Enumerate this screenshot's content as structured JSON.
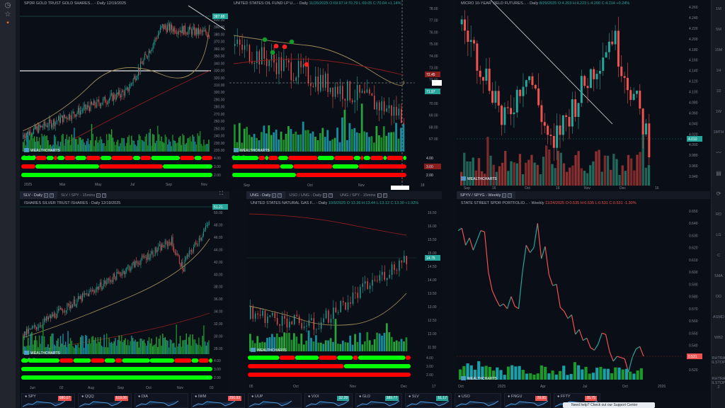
{
  "app": {
    "brand": "WEALTHCHARTS"
  },
  "left_sidebar": {
    "icons": [
      "clock-icon",
      "star-icon",
      "apps-icon"
    ]
  },
  "right_toolbar": {
    "items": [
      "1M",
      "5M",
      "15M",
      "1H",
      "1D",
      "1W",
      "1MTH",
      "line-chart-icon",
      "notes-icon",
      "refresh-icon",
      "RD",
      "LG",
      "C",
      "SMA",
      "DD",
      "ASMD",
      "WB2",
      "RHTRA ILSTOP",
      "RHTRA ILSTOP 2"
    ]
  },
  "panels": [
    {
      "id": "gld",
      "title": "SPDR GOLD TRUST GOLD SHARES... - Daily 12/19/2025",
      "ohlc": "",
      "y_labels": [
        "400.00",
        "390.00",
        "380.00",
        "370.00",
        "360.00",
        "350.00",
        "340.00",
        "330.00",
        "320.00",
        "310.00",
        "300.00",
        "290.00",
        "280.00",
        "270.00",
        "260.00",
        "250.00",
        "240.00",
        "230.00",
        "220.00"
      ],
      "price_tag": "387.88",
      "osc_labels": [
        "4.00",
        "3.00",
        "2.00"
      ],
      "x_labels": [
        "2025",
        "Mar",
        "May",
        "Jul",
        "Sep",
        "Nov"
      ]
    },
    {
      "id": "uso",
      "title": "UNITED STATES OIL FUND LP U... - Daily",
      "ohlc": "11/26/2025 O:69.97 H:70.79 L:69.05 C:70.04 +1.14%",
      "y_labels": [
        "78.00",
        "77.00",
        "76.00",
        "75.00",
        "74.00",
        "73.00",
        "72.00",
        "71.00",
        "70.00",
        "69.00",
        "68.00",
        "67.00"
      ],
      "price_tags": [
        "72.45",
        "71.97"
      ],
      "osc_labels": [
        "4.00",
        "3.00",
        "2.00"
      ],
      "x_labels": [
        "Sep",
        "Oct",
        "Nov",
        "18"
      ]
    },
    {
      "id": "10y",
      "title": "MICRO 10-YEAR YIELD FUTURES... - Daily",
      "ohlc": "8/29/2025 O:4.203 H:4.223 L:4.200 C:4.214 +0.24%",
      "y_labels": [
        "4.260",
        "4.240",
        "4.220",
        "4.200",
        "4.180",
        "4.160",
        "4.140",
        "4.120",
        "4.100",
        "4.080",
        "4.060",
        "4.040",
        "4.020",
        "4.000",
        "3.980",
        "3.960",
        "3.940"
      ],
      "price_tag": "4.010",
      "x_labels": [
        "Sep",
        "16",
        "Oct",
        "16",
        "Nov",
        "Dec",
        "16"
      ]
    },
    {
      "id": "slv",
      "tabs": [
        {
          "label": "SLV - Daily",
          "active": true
        },
        {
          "label": "SLV / SPY - 15mins",
          "active": false
        }
      ],
      "title": "ISHARES SILVER TRUST ISHARES - Daily 12/19/2025",
      "ohlc": "",
      "y_labels": [
        "50.00",
        "48.00",
        "46.00",
        "44.00",
        "42.00",
        "40.00",
        "38.00",
        "36.00",
        "34.00",
        "32.00",
        "30.00",
        "28.00"
      ],
      "price_tag": "51.21",
      "osc_labels": [
        "4.00",
        "3.00",
        "2.00"
      ],
      "x_labels": [
        "Jun",
        "02",
        "Aug",
        "Sep",
        "Oct",
        "Nov",
        "03"
      ]
    },
    {
      "id": "ung",
      "tabs": [
        {
          "label": "UNG - Daily",
          "active": true
        },
        {
          "label": "USO / UNG - Daily",
          "active": false
        },
        {
          "label": "UNG / SPY - 15mins",
          "active": false
        }
      ],
      "title": "UNITED STATES NATURAL GAS F... - Daily",
      "ohlc": "10/6/2025 O:13.36 H:13.44 L:13.12 C:13.30 +1.92%",
      "y_labels": [
        "16.50",
        "16.00",
        "15.50",
        "15.00",
        "14.50",
        "14.00",
        "13.50",
        "13.00",
        "12.50",
        "12.00",
        "11.50"
      ],
      "price_tag": "14.75",
      "osc_labels": [
        "4.00",
        "3.00",
        "2.00"
      ],
      "x_labels": [
        "05",
        "Oct",
        "Nov",
        "Dec",
        "17"
      ]
    },
    {
      "id": "spyv",
      "tabs": [
        {
          "label": "SPYV / SPYG - Weekly",
          "active": true
        }
      ],
      "title": "STATE STREET SPDR PORTFOLIO... - Weekly",
      "ohlc": "11/24/2025 O:0.535 H:0.535 L:0.531 C:0.531 -1.30%",
      "y_labels": [
        "0.650",
        "0.640",
        "0.630",
        "0.620",
        "0.610",
        "0.600",
        "0.590",
        "0.580",
        "0.570",
        "0.560",
        "0.550",
        "0.540",
        "0.530",
        "0.520"
      ],
      "price_tag": "0.531",
      "x_labels": [
        "Oct",
        "2025",
        "Apr",
        "Jul",
        "Oct",
        "2026"
      ]
    }
  ],
  "tickers": [
    {
      "symbol": "SPY",
      "price": "680.07",
      "color": "#ef5350"
    },
    {
      "symbol": "QQQ",
      "price": "619.06",
      "color": "#ef5350"
    },
    {
      "symbol": "DIA",
      "price": "",
      "color": "#ef5350"
    },
    {
      "symbol": "IWM",
      "price": "250.93",
      "color": "#ef5350"
    },
    {
      "symbol": "UUP",
      "price": "",
      "color": "#26a69a"
    },
    {
      "symbol": "VXX",
      "price": "32.28",
      "color": "#26a69a"
    },
    {
      "symbol": "GLD",
      "price": "389.77",
      "color": "#26a69a"
    },
    {
      "symbol": "SLV",
      "price": "51.17",
      "color": "#26a69a"
    },
    {
      "symbol": "USO",
      "price": "",
      "color": "#26a69a"
    },
    {
      "symbol": "FNGU",
      "price": "29.95",
      "color": "#ef5350"
    },
    {
      "symbol": "FFTY",
      "price": "35.75",
      "color": "#ef5350"
    }
  ],
  "tooltip": {
    "text": "Need help? Check out our Support Center"
  },
  "colors": {
    "up": "#26a69a",
    "down": "#ef5350",
    "osc_green": "#00ff00",
    "osc_red": "#ff0000"
  }
}
